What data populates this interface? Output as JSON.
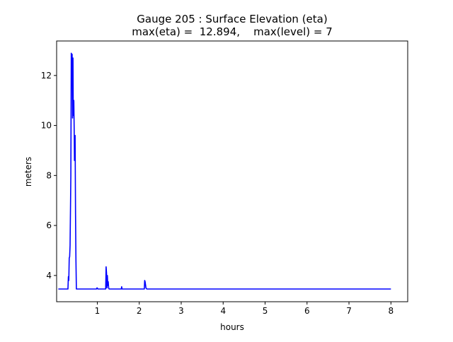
{
  "chart_data": {
    "type": "line",
    "title": "Gauge 205 : Surface Elevation (eta)",
    "subtitle": "max(eta) =  12.894,    max(level) = 7",
    "xlabel": "hours",
    "ylabel": "meters",
    "xlim": [
      0.03,
      8.4
    ],
    "ylim": [
      2.95,
      13.38
    ],
    "xticks": [
      1,
      2,
      3,
      4,
      5,
      6,
      7,
      8
    ],
    "yticks": [
      4,
      6,
      8,
      10,
      12
    ],
    "grid": false,
    "series": [
      {
        "name": "eta",
        "color": "#0000ff",
        "x": [
          0.07,
          0.3,
          0.31,
          0.32,
          0.33,
          0.34,
          0.35,
          0.37,
          0.38,
          0.39,
          0.4,
          0.41,
          0.42,
          0.425,
          0.43,
          0.44,
          0.45,
          0.455,
          0.46,
          0.47,
          0.48,
          0.49,
          0.5,
          0.98,
          0.99,
          1.0,
          1.01,
          1.2,
          1.21,
          1.22,
          1.23,
          1.24,
          1.25,
          1.26,
          1.27,
          1.28,
          1.3,
          1.57,
          1.58,
          1.59,
          2.12,
          2.13,
          2.14,
          2.16,
          2.18,
          8.0
        ],
        "y": [
          3.46,
          3.46,
          3.95,
          3.8,
          4.7,
          4.75,
          5.2,
          8.0,
          12.89,
          12.5,
          12.85,
          10.3,
          12.7,
          11.0,
          10.4,
          11.0,
          9.6,
          8.6,
          9.0,
          9.6,
          6.5,
          4.6,
          3.46,
          3.46,
          3.5,
          3.5,
          3.46,
          3.46,
          4.35,
          4.1,
          3.5,
          4.0,
          3.6,
          3.75,
          3.5,
          3.46,
          3.46,
          3.46,
          3.55,
          3.46,
          3.46,
          3.8,
          3.75,
          3.5,
          3.46,
          3.46
        ]
      }
    ]
  }
}
